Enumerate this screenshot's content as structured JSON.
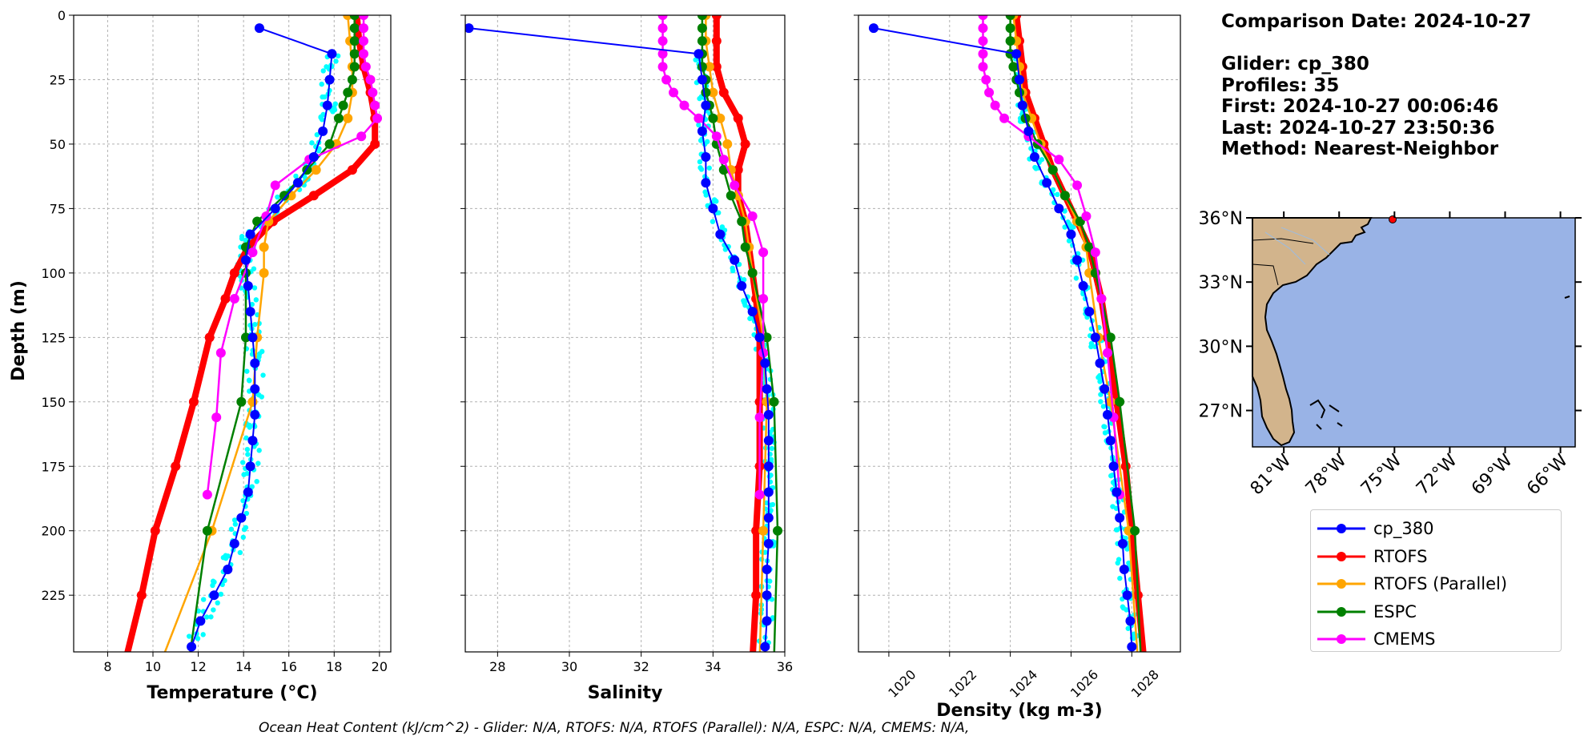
{
  "info": {
    "comparison_date": "Comparison Date: 2024-10-27",
    "glider": "Glider: cp_380",
    "profiles": "Profiles: 35",
    "first": "First: 2024-10-27 00:06:46",
    "last": "Last: 2024-10-27 23:50:36",
    "method": "Method: Nearest-Neighbor"
  },
  "footer": "Ocean Heat Content (kJ/cm^2) - Glider: N/A,  RTOFS: N/A,  RTOFS (Parallel): N/A,  ESPC: N/A,  CMEMS: N/A,",
  "colors": {
    "cp_380": "#0000ff",
    "RTOFS": "#ff0000",
    "RTOFS (Parallel)": "#ffa500",
    "ESPC": "#008000",
    "CMEMS": "#ff00ff",
    "glider_scatter": "#00ffff",
    "land": "#d2b48c",
    "ocean": "#99b3e6"
  },
  "legend": [
    "cp_380",
    "RTOFS",
    "RTOFS (Parallel)",
    "ESPC",
    "CMEMS"
  ],
  "map": {
    "lat_ticks": [
      "36°N",
      "33°N",
      "30°N",
      "27°N"
    ],
    "lon_ticks": [
      "81°W",
      "78°W",
      "75°W",
      "72°W",
      "69°W",
      "66°W"
    ],
    "lat_range": [
      25.3,
      36.0
    ],
    "lon_range": [
      -82.7,
      -65.2
    ],
    "glider_position": {
      "lon": -75.1,
      "lat": 36.0
    }
  },
  "chart_data": [
    {
      "type": "line",
      "xlabel": "Temperature (°C)",
      "ylabel": "Depth (m)",
      "xlim": [
        6.5,
        20.5
      ],
      "ylim": [
        247,
        0
      ],
      "xticks": [
        8,
        10,
        12,
        14,
        16,
        18,
        20
      ],
      "yticks": [
        0,
        25,
        50,
        75,
        100,
        125,
        150,
        175,
        200,
        225
      ],
      "grid": true,
      "series": [
        {
          "name": "cp_380",
          "depth": [
            5,
            15,
            25,
            35,
            45,
            55,
            65,
            75,
            85,
            95,
            105,
            115,
            125,
            135,
            145,
            155,
            165,
            175,
            185,
            195,
            205,
            215,
            225,
            235,
            245
          ],
          "values": [
            14.7,
            17.9,
            17.8,
            17.7,
            17.5,
            17.1,
            16.4,
            15.4,
            14.3,
            14.1,
            14.2,
            14.3,
            14.4,
            14.5,
            14.5,
            14.5,
            14.4,
            14.3,
            14.2,
            13.9,
            13.6,
            13.3,
            12.7,
            12.1,
            11.7
          ]
        },
        {
          "name": "RTOFS",
          "depth": [
            0,
            10,
            20,
            30,
            40,
            50,
            60,
            70,
            80,
            90,
            100,
            110,
            125,
            150,
            175,
            200,
            225,
            250
          ],
          "values": [
            19.0,
            19.1,
            19.3,
            19.6,
            19.8,
            19.8,
            18.8,
            17.1,
            15.3,
            14.2,
            13.6,
            13.2,
            12.5,
            11.8,
            11.0,
            10.1,
            9.5,
            8.8
          ]
        },
        {
          "name": "RTOFS (Parallel)",
          "depth": [
            0,
            10,
            20,
            30,
            40,
            50,
            60,
            70,
            80,
            90,
            100,
            125,
            150,
            200,
            250
          ],
          "values": [
            18.6,
            18.7,
            18.8,
            18.8,
            18.6,
            18.1,
            17.2,
            16.1,
            15.1,
            14.9,
            14.9,
            14.6,
            14.4,
            12.6,
            10.4
          ]
        },
        {
          "name": "ESPC",
          "depth": [
            0,
            5,
            10,
            15,
            20,
            25,
            30,
            35,
            40,
            50,
            60,
            70,
            80,
            90,
            100,
            125,
            150,
            200,
            250
          ],
          "values": [
            18.9,
            18.9,
            18.9,
            18.9,
            18.9,
            18.8,
            18.6,
            18.4,
            18.2,
            17.8,
            16.8,
            15.8,
            14.6,
            14.1,
            14.1,
            14.1,
            13.9,
            12.4,
            11.6
          ]
        },
        {
          "name": "CMEMS",
          "depth": [
            0,
            5,
            10,
            15,
            20,
            25,
            30,
            35,
            40,
            47,
            56,
            66,
            78,
            92,
            110,
            131,
            156,
            186
          ],
          "values": [
            19.3,
            19.3,
            19.3,
            19.3,
            19.4,
            19.6,
            19.7,
            19.8,
            19.9,
            19.2,
            16.9,
            15.4,
            15.0,
            14.4,
            13.6,
            13.0,
            12.8,
            12.4
          ]
        }
      ]
    },
    {
      "type": "line",
      "xlabel": "Salinity",
      "xlim": [
        27.1,
        36.0
      ],
      "ylim": [
        247,
        0
      ],
      "xticks": [
        28,
        30,
        32,
        34,
        36
      ],
      "grid": true,
      "series": [
        {
          "name": "cp_380",
          "depth": [
            5,
            15,
            25,
            35,
            45,
            55,
            65,
            75,
            85,
            95,
            105,
            115,
            125,
            135,
            145,
            155,
            165,
            175,
            185,
            195,
            205,
            215,
            225,
            235,
            245
          ],
          "values": [
            27.2,
            33.6,
            33.7,
            33.8,
            33.7,
            33.8,
            33.8,
            34.0,
            34.2,
            34.6,
            34.8,
            35.1,
            35.3,
            35.45,
            35.5,
            35.55,
            35.55,
            35.55,
            35.55,
            35.55,
            35.55,
            35.5,
            35.5,
            35.5,
            35.45
          ]
        },
        {
          "name": "RTOFS",
          "depth": [
            0,
            10,
            20,
            30,
            40,
            50,
            60,
            70,
            80,
            90,
            100,
            110,
            125,
            150,
            175,
            200,
            225,
            250
          ],
          "values": [
            34.1,
            34.1,
            34.1,
            34.3,
            34.7,
            34.9,
            34.7,
            34.7,
            34.9,
            35.0,
            35.1,
            35.2,
            35.3,
            35.3,
            35.3,
            35.2,
            35.2,
            35.1
          ]
        },
        {
          "name": "RTOFS (Parallel)",
          "depth": [
            0,
            10,
            20,
            30,
            40,
            50,
            60,
            70,
            80,
            90,
            100,
            125,
            150,
            200,
            250
          ],
          "values": [
            33.8,
            33.8,
            33.9,
            34.0,
            34.2,
            34.4,
            34.5,
            34.7,
            34.9,
            35.0,
            35.1,
            35.4,
            35.5,
            35.4,
            35.3
          ]
        },
        {
          "name": "ESPC",
          "depth": [
            0,
            5,
            10,
            15,
            20,
            25,
            30,
            35,
            40,
            50,
            60,
            70,
            80,
            90,
            100,
            125,
            150,
            200,
            250
          ],
          "values": [
            33.7,
            33.7,
            33.7,
            33.7,
            33.7,
            33.8,
            33.8,
            33.9,
            34.0,
            34.1,
            34.3,
            34.5,
            34.8,
            34.9,
            35.1,
            35.5,
            35.7,
            35.8,
            35.7
          ]
        },
        {
          "name": "CMEMS",
          "depth": [
            0,
            5,
            10,
            15,
            20,
            25,
            30,
            35,
            40,
            47,
            56,
            66,
            78,
            92,
            110,
            131,
            156,
            186
          ],
          "values": [
            32.6,
            32.6,
            32.6,
            32.6,
            32.6,
            32.7,
            32.9,
            33.2,
            33.6,
            34.1,
            34.3,
            34.6,
            35.1,
            35.4,
            35.4,
            35.4,
            35.3,
            35.3
          ]
        }
      ]
    },
    {
      "type": "line",
      "xlabel": "Density (kg m-3)",
      "xlim": [
        1019.0,
        1029.6
      ],
      "ylim": [
        247,
        0
      ],
      "xticks": [
        1020,
        1022,
        1024,
        1026,
        1028
      ],
      "grid": true,
      "series": [
        {
          "name": "cp_380",
          "depth": [
            5,
            15,
            25,
            35,
            45,
            55,
            65,
            75,
            85,
            95,
            105,
            115,
            125,
            135,
            145,
            155,
            165,
            175,
            185,
            195,
            205,
            215,
            225,
            235,
            245
          ],
          "values": [
            1019.5,
            1024.2,
            1024.3,
            1024.4,
            1024.6,
            1024.8,
            1025.2,
            1025.6,
            1026.0,
            1026.2,
            1026.4,
            1026.6,
            1026.8,
            1026.95,
            1027.1,
            1027.2,
            1027.3,
            1027.4,
            1027.5,
            1027.6,
            1027.7,
            1027.75,
            1027.85,
            1027.95,
            1028.0
          ]
        },
        {
          "name": "RTOFS",
          "depth": [
            0,
            10,
            20,
            30,
            40,
            50,
            60,
            70,
            80,
            90,
            100,
            110,
            125,
            150,
            175,
            200,
            225,
            250
          ],
          "values": [
            1024.2,
            1024.3,
            1024.4,
            1024.5,
            1024.8,
            1025.1,
            1025.4,
            1025.8,
            1026.2,
            1026.6,
            1026.8,
            1027.0,
            1027.2,
            1027.5,
            1027.8,
            1028.0,
            1028.2,
            1028.4
          ]
        },
        {
          "name": "RTOFS (Parallel)",
          "depth": [
            0,
            10,
            20,
            30,
            40,
            50,
            60,
            70,
            80,
            90,
            100,
            125,
            150,
            200,
            250
          ],
          "values": [
            1024.1,
            1024.2,
            1024.3,
            1024.4,
            1024.7,
            1025.0,
            1025.4,
            1025.8,
            1026.2,
            1026.5,
            1026.6,
            1026.9,
            1027.3,
            1027.9,
            1028.2
          ]
        },
        {
          "name": "ESPC",
          "depth": [
            0,
            5,
            10,
            15,
            20,
            25,
            30,
            35,
            40,
            50,
            60,
            70,
            80,
            90,
            100,
            125,
            150,
            200,
            250
          ],
          "values": [
            1024.0,
            1024.0,
            1024.0,
            1024.0,
            1024.1,
            1024.2,
            1024.3,
            1024.4,
            1024.5,
            1024.9,
            1025.4,
            1025.8,
            1026.3,
            1026.6,
            1026.8,
            1027.3,
            1027.6,
            1028.1,
            1028.3
          ]
        },
        {
          "name": "CMEMS",
          "depth": [
            0,
            5,
            10,
            15,
            20,
            25,
            30,
            35,
            40,
            47,
            56,
            66,
            78,
            92,
            110,
            131,
            156,
            186
          ],
          "values": [
            1023.1,
            1023.1,
            1023.1,
            1023.1,
            1023.1,
            1023.2,
            1023.3,
            1023.5,
            1023.8,
            1024.6,
            1025.6,
            1026.2,
            1026.5,
            1026.8,
            1027.0,
            1027.2,
            1027.4,
            1027.6
          ]
        }
      ]
    }
  ]
}
